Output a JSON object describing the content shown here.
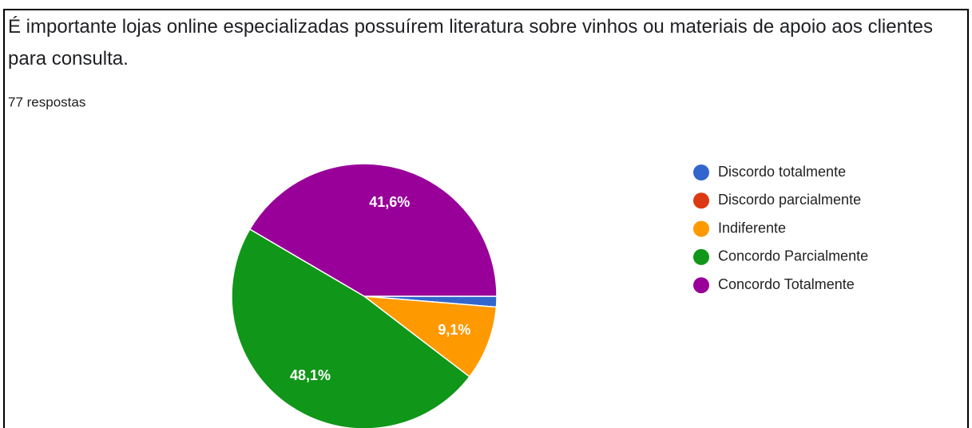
{
  "chart_data": {
    "type": "pie",
    "title": "É importante lojas online especializadas possuírem literatura sobre vinhos ou materiais de apoio aos clientes para consulta.",
    "subtitle": "77 respostas",
    "categories": [
      "Discordo totalmente",
      "Discordo parcialmente",
      "Indiferente",
      "Concordo Parcialmente",
      "Concordo Totalmente"
    ],
    "values": [
      1.3,
      0,
      9.1,
      48.1,
      41.6
    ],
    "value_labels": [
      null,
      null,
      "9,1%",
      "48,1%",
      "41,6%"
    ],
    "colors": [
      "#3366cc",
      "#dc3912",
      "#ff9900",
      "#109618",
      "#990099"
    ],
    "legend": "right"
  }
}
